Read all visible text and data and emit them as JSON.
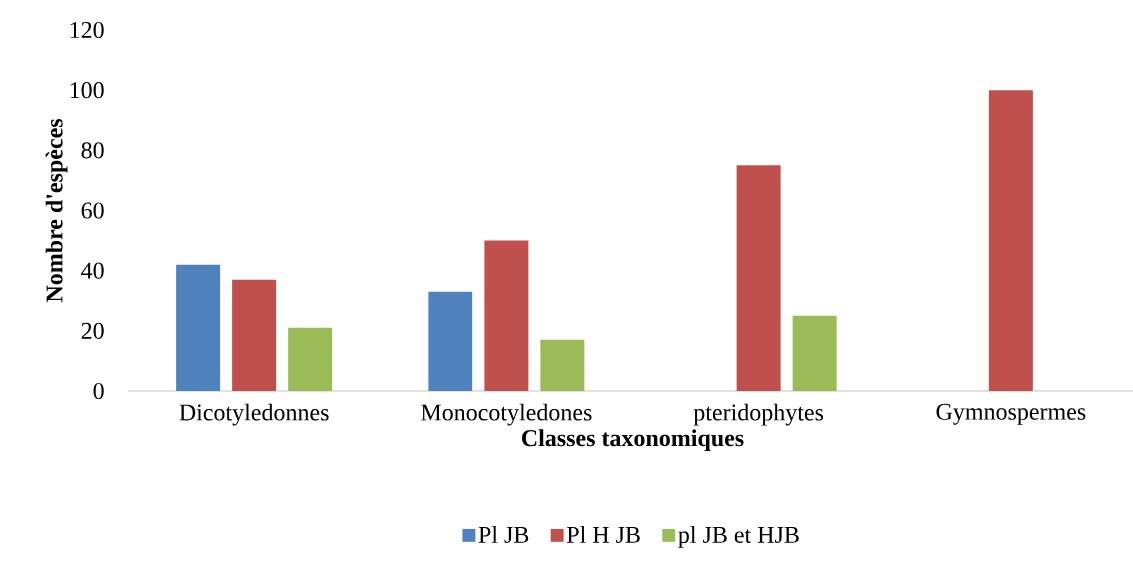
{
  "chart_data": {
    "type": "bar",
    "xlabel": "Classes taxonomiques",
    "ylabel": "Nombre d'espèces",
    "categories": [
      "Dicotyledonnes",
      "Monocotyledones",
      "pteridophytes",
      "Gymnospermes"
    ],
    "series": [
      {
        "name": "Pl JB",
        "color": "#4f81bd",
        "values": [
          42,
          33,
          null,
          null
        ]
      },
      {
        "name": "Pl H JB",
        "color": "#c0504d",
        "values": [
          37,
          50,
          75,
          100
        ]
      },
      {
        "name": "pl JB et HJB",
        "color": "#9bbb59",
        "values": [
          21,
          17,
          25,
          null
        ]
      }
    ],
    "ylim": [
      0,
      120
    ],
    "yticks": [
      0,
      20,
      40,
      60,
      80,
      100,
      120
    ],
    "legend": "bottom"
  }
}
